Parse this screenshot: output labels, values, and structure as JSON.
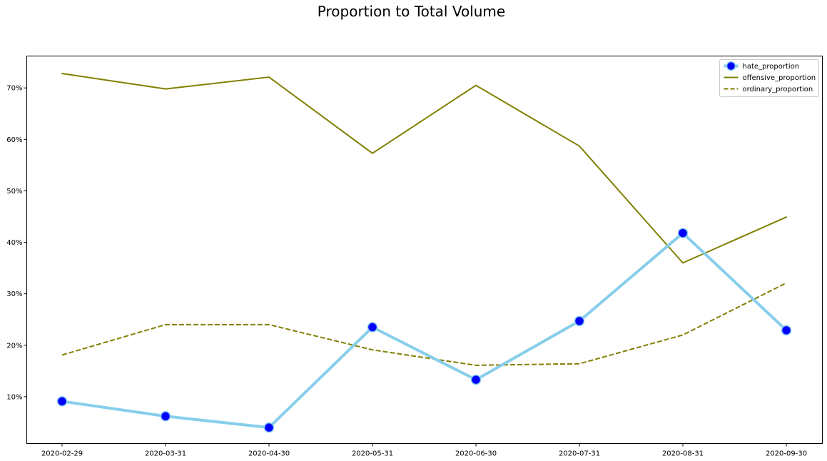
{
  "chart_data": {
    "type": "line",
    "title": "Proportion to Total Volume",
    "xlabel": "",
    "ylabel": "",
    "categories": [
      "2020-02-29",
      "2020-03-31",
      "2020-04-30",
      "2020-05-31",
      "2020-06-30",
      "2020-07-31",
      "2020-08-31",
      "2020-09-30"
    ],
    "y_ticks": [
      10,
      20,
      30,
      40,
      50,
      60,
      70
    ],
    "y_tick_labels": [
      "10%",
      "20%",
      "30%",
      "40%",
      "50%",
      "60%",
      "70%"
    ],
    "ylim": [
      0.9,
      76.2
    ],
    "y_unit": "%",
    "grid": false,
    "legend_position": "top-right",
    "series": [
      {
        "name": "hate_proportion",
        "values": [
          9.1,
          6.2,
          4.0,
          23.5,
          13.3,
          24.7,
          41.8,
          22.9
        ],
        "color": "#87ceeb",
        "marker_color": "#0000ff",
        "line_style": "solid",
        "marker": "circle"
      },
      {
        "name": "offensive_proportion",
        "values": [
          72.8,
          69.8,
          72.1,
          57.3,
          70.5,
          58.7,
          36.0,
          44.9
        ],
        "color": "#808000",
        "line_style": "solid",
        "marker": "none"
      },
      {
        "name": "ordinary_proportion",
        "values": [
          18.1,
          24.0,
          24.0,
          19.1,
          16.1,
          16.4,
          22.0,
          32.1
        ],
        "color": "#808000",
        "line_style": "dashed",
        "marker": "none"
      }
    ]
  }
}
